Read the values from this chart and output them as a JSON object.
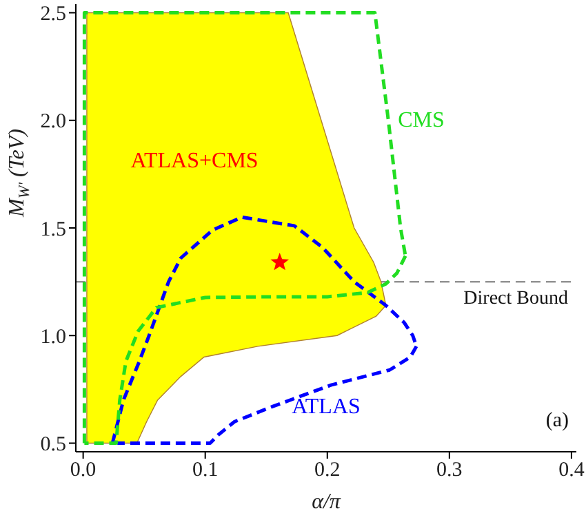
{
  "chart_data": {
    "type": "line",
    "xlabel": "α/π",
    "ylabel": "M$_{W'}$(TeV)",
    "xlim": [
      -0.006,
      0.404
    ],
    "ylim": [
      0.46,
      2.54
    ],
    "xticks": [
      {
        "value": 0,
        "label": "0.0"
      },
      {
        "value": 0.1,
        "label": "0.1"
      },
      {
        "value": 0.2,
        "label": "0.2"
      },
      {
        "value": 0.3,
        "label": "0.3"
      },
      {
        "value": 0.4,
        "label": "0.4"
      }
    ],
    "yticks": [
      {
        "value": 0.5,
        "label": "0.5"
      },
      {
        "value": 1,
        "label": "1.0"
      },
      {
        "value": 1.5,
        "label": "1.5"
      },
      {
        "value": 2,
        "label": "2.0"
      },
      {
        "value": 2.5,
        "label": "2.5"
      }
    ],
    "series": [
      {
        "type": "area",
        "color": "#ffff00",
        "x": [
          0.003,
          0.003,
          0.168,
          0.195,
          0.222,
          0.238,
          0.244,
          0.248,
          0.24,
          0.208,
          0.143,
          0.099,
          0.08,
          0.061,
          0.052,
          0.044,
          0.003
        ],
        "values": [
          0.5,
          2.5,
          2.5,
          2.0,
          1.5,
          1.34,
          1.25,
          1.14,
          1.09,
          1.0,
          0.95,
          0.9,
          0.81,
          0.7,
          0.6,
          0.5,
          0.5
        ]
      },
      {
        "type": "line",
        "color": "#0000ff",
        "line_style": "dashed",
        "x": [
          0.024,
          0.033,
          0.046,
          0.054,
          0.07,
          0.08,
          0.106,
          0.13,
          0.173,
          0.196,
          0.222,
          0.248,
          0.263,
          0.27,
          0.273
        ],
        "values": [
          0.5,
          0.7,
          0.88,
          1.0,
          1.25,
          1.36,
          1.49,
          1.55,
          1.51,
          1.41,
          1.25,
          1.14,
          1.06,
          1.0,
          0.95
        ]
      },
      {
        "type": "line",
        "color": "#0000ff",
        "line_style": "dashed",
        "x": [
          0.273,
          0.268,
          0.251,
          0.203,
          0.155,
          0.124,
          0.111,
          0.104,
          0.028
        ],
        "values": [
          0.95,
          0.9,
          0.84,
          0.77,
          0.67,
          0.6,
          0.54,
          0.5,
          0.5
        ]
      },
      {
        "type": "line",
        "color": "#22dd22",
        "line_style": "dashed",
        "x": [
          0.001,
          0.001,
          0.239,
          0.25,
          0.26,
          0.264
        ],
        "values": [
          0.5,
          2.5,
          2.5,
          2.0,
          1.5,
          1.37
        ]
      },
      {
        "type": "line",
        "color": "#22dd22",
        "line_style": "dashed",
        "x": [
          0.264,
          0.257,
          0.248,
          0.233,
          0.2,
          0.15,
          0.1,
          0.06,
          0.045,
          0.035,
          0.03,
          0.027,
          0.001
        ],
        "values": [
          1.37,
          1.29,
          1.24,
          1.2,
          1.18,
          1.18,
          1.177,
          1.13,
          1.02,
          0.88,
          0.7,
          0.5,
          0.5
        ]
      },
      {
        "type": "scatter",
        "color": "#ff0000",
        "marker": "star",
        "x": [
          0.161
        ],
        "values": [
          1.34
        ]
      }
    ],
    "ref_lines": [
      {
        "axis": "y",
        "value": 1.25,
        "label": "Direct Bound",
        "color": "#777777",
        "line_style": "dashed"
      }
    ],
    "annotations": [
      "ATLAS+CMS",
      "ATLAS",
      "CMS",
      "(a)"
    ]
  }
}
